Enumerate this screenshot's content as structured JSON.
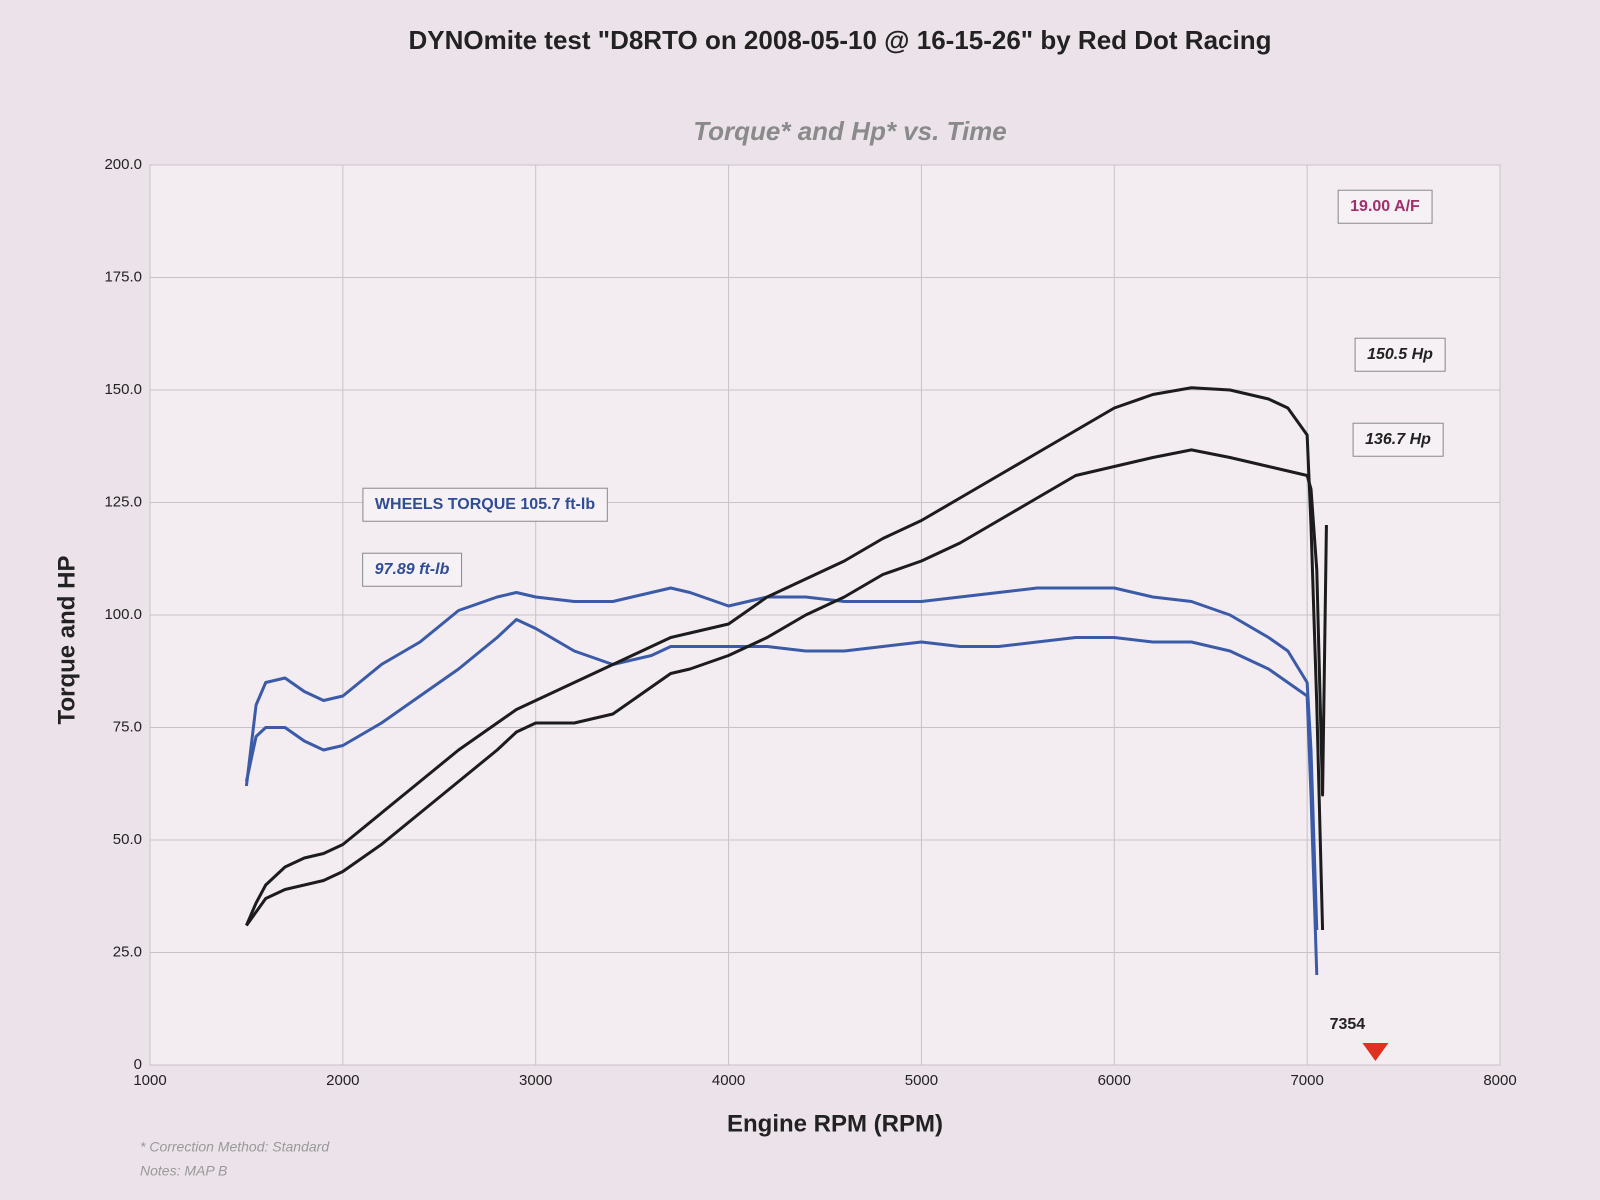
{
  "chart_data": {
    "type": "line",
    "title": "DYNOmite test \"D8RTO on 2008-05-10 @ 16-15-26\" by Red Dot Racing",
    "subtitle": "Torque* and Hp* vs. Time",
    "x_label": "Engine RPM (RPM)",
    "y_label": "Torque and HP",
    "grid": true,
    "xlim": [
      1000,
      8000
    ],
    "xticks": [
      1000,
      2000,
      3000,
      4000,
      5000,
      6000,
      7000,
      8000
    ],
    "ylim": [
      0,
      200
    ],
    "yticks": [
      0,
      {
        "value": 25,
        "label": "25.0"
      },
      {
        "value": 50,
        "label": "50.0"
      },
      {
        "value": 75,
        "label": "75.0"
      },
      {
        "value": 100,
        "label": "100.0"
      },
      {
        "value": 125,
        "label": "125.0"
      },
      {
        "value": 150,
        "label": "150.0"
      },
      {
        "value": 175,
        "label": "175.0"
      },
      {
        "value": 200,
        "label": "200.0"
      }
    ],
    "x": [
      1500,
      1550,
      1600,
      1700,
      1800,
      1900,
      2000,
      2200,
      2400,
      2600,
      2800,
      2900,
      3000,
      3200,
      3400,
      3600,
      3700,
      3800,
      4000,
      4200,
      4400,
      4600,
      4800,
      5000,
      5200,
      5400,
      5600,
      5800,
      6000,
      6200,
      6400,
      6600,
      6800,
      6900,
      7000,
      7020,
      7050,
      7080,
      7100
    ],
    "series": [
      {
        "color": "#3b5ba8",
        "values": [
          62,
          80,
          85,
          86,
          83,
          81,
          82,
          89,
          94,
          101,
          104,
          105,
          104,
          103,
          103,
          105,
          106,
          105,
          102,
          104,
          104,
          103,
          103,
          103,
          104,
          105,
          106,
          106,
          106,
          104,
          103,
          100,
          95,
          92,
          85,
          70,
          30,
          null,
          null
        ]
      },
      {
        "color": "#3b5ba8",
        "values": [
          63,
          73,
          75,
          75,
          72,
          70,
          71,
          76,
          82,
          88,
          95,
          99,
          97,
          92,
          89,
          91,
          93,
          93,
          93,
          93,
          92,
          92,
          93,
          94,
          93,
          93,
          94,
          95,
          95,
          94,
          94,
          92,
          88,
          85,
          82,
          60,
          20,
          null,
          null
        ]
      },
      {
        "color": "#1c1c1c",
        "values": [
          31,
          36,
          40,
          44,
          46,
          47,
          49,
          56,
          63,
          70,
          76,
          79,
          81,
          85,
          89,
          93,
          95,
          96,
          98,
          104,
          108,
          112,
          117,
          121,
          126,
          131,
          136,
          141,
          146,
          149,
          150.5,
          150,
          148,
          146,
          140,
          120,
          80,
          30,
          null
        ]
      },
      {
        "color": "#1c1c1c",
        "values": [
          31,
          34,
          37,
          39,
          40,
          41,
          43,
          49,
          56,
          63,
          70,
          74,
          76,
          76,
          78,
          84,
          87,
          88,
          91,
          95,
          100,
          104,
          109,
          112,
          116,
          121,
          126,
          131,
          133,
          135,
          136.7,
          135,
          133,
          132,
          131,
          128,
          110,
          60,
          120
        ]
      }
    ],
    "annotations": [
      "19.00 A/F",
      "150.5 Hp",
      "136.7 Hp",
      "WHEELS TORQUE 105.7 ft-lb",
      "97.89 ft-lb"
    ],
    "rpm_marker": 7354,
    "notes": [
      "* Correction Method: Standard",
      "Notes: MAP B"
    ]
  }
}
